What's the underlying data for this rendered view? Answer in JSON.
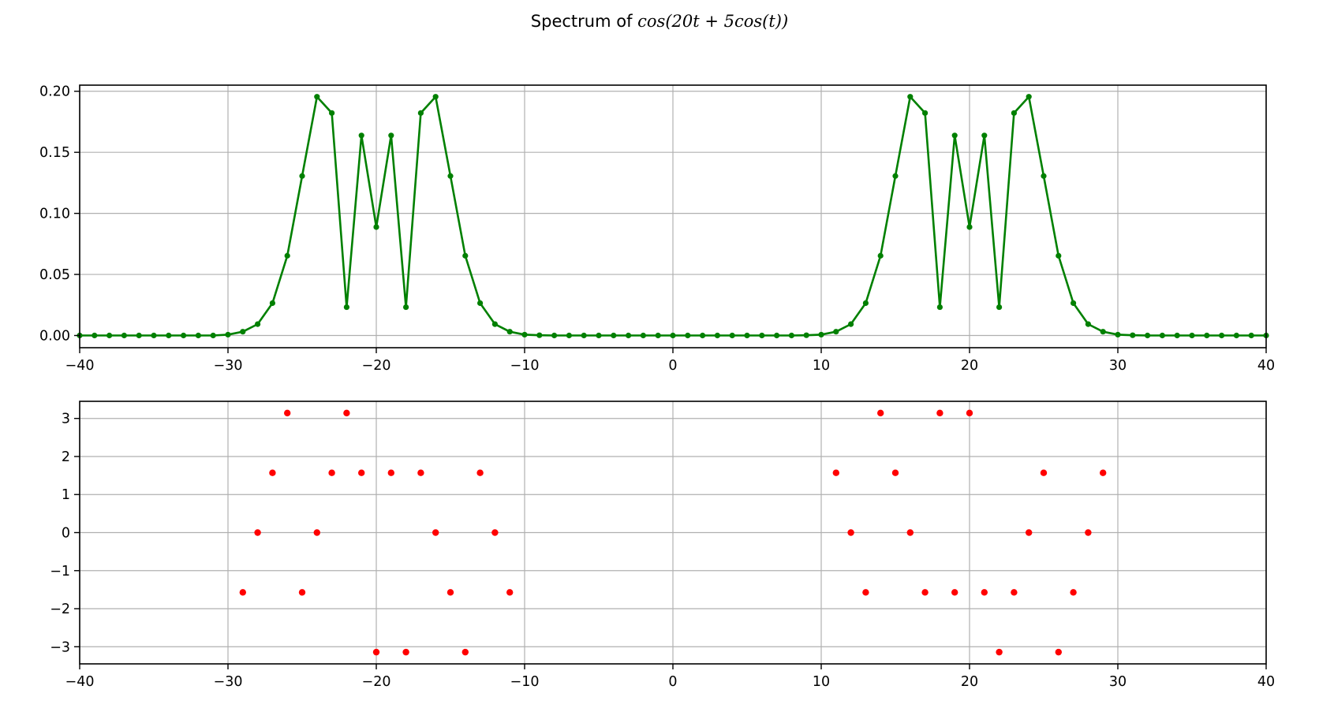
{
  "figure": {
    "title_prefix": "Spectrum of ",
    "title_math": "cos(20t + 5cos(t))"
  },
  "chart_data": [
    {
      "type": "line",
      "title": "",
      "xlabel": "",
      "ylabel": "",
      "xlim": [
        -40,
        40
      ],
      "ylim": [
        -0.01,
        0.205
      ],
      "grid": true,
      "color": "#008000",
      "marker": "circle",
      "x_ticks": [
        -40,
        -30,
        -20,
        -10,
        0,
        10,
        20,
        30,
        40
      ],
      "x_tick_labels": [
        "−40",
        "−30",
        "−20",
        "−10",
        "0",
        "10",
        "20",
        "30",
        "40"
      ],
      "y_ticks": [
        0.0,
        0.05,
        0.1,
        0.15,
        0.2
      ],
      "y_tick_labels": [
        "0.00",
        "0.05",
        "0.10",
        "0.15",
        "0.20"
      ],
      "series": [
        {
          "x": [
            -40,
            -39,
            -38,
            -37,
            -36,
            -35,
            -34,
            -33,
            -32,
            -31,
            -30,
            -29,
            -28,
            -27,
            -26,
            -25,
            -24,
            -23,
            -22,
            -21,
            -20,
            -19,
            -18,
            -17,
            -16,
            -15,
            -14,
            -13,
            -12,
            -11,
            -10,
            -9,
            -8,
            -7,
            -6,
            -5,
            -4,
            -3,
            -2,
            -1,
            0,
            1,
            2,
            3,
            4,
            5,
            6,
            7,
            8,
            9,
            10,
            11,
            12,
            13,
            14,
            15,
            16,
            17,
            18,
            19,
            20,
            21,
            22,
            23,
            24,
            25,
            26,
            27,
            28,
            29,
            30,
            31,
            32,
            33,
            34,
            35,
            36,
            37,
            38,
            39,
            40
          ],
          "y": [
            0,
            0,
            0,
            0,
            0,
            0,
            0,
            0,
            0,
            0,
            0.0007,
            0.0031,
            0.0093,
            0.0265,
            0.0653,
            0.1306,
            0.1955,
            0.1822,
            0.0232,
            0.1638,
            0.0888,
            0.1638,
            0.0232,
            0.1822,
            0.1955,
            0.1306,
            0.0653,
            0.0265,
            0.0093,
            0.0031,
            0.0007,
            0.0002,
            0,
            0,
            0,
            0,
            0,
            0,
            0,
            0,
            0,
            0,
            0,
            0,
            0,
            0,
            0,
            0,
            0,
            0.0002,
            0.0007,
            0.0031,
            0.0093,
            0.0265,
            0.0653,
            0.1306,
            0.1955,
            0.1822,
            0.0232,
            0.1638,
            0.0888,
            0.1638,
            0.0232,
            0.1822,
            0.1955,
            0.1306,
            0.0653,
            0.0265,
            0.0093,
            0.0031,
            0.0007,
            0.0002,
            0,
            0,
            0,
            0,
            0,
            0,
            0,
            0,
            0
          ]
        }
      ]
    },
    {
      "type": "scatter",
      "title": "",
      "xlabel": "",
      "ylabel": "",
      "xlim": [
        -40,
        40
      ],
      "ylim": [
        -3.45,
        3.45
      ],
      "grid": true,
      "color": "#ff0000",
      "marker": "circle",
      "x_ticks": [
        -40,
        -30,
        -20,
        -10,
        0,
        10,
        20,
        30,
        40
      ],
      "x_tick_labels": [
        "−40",
        "−30",
        "−20",
        "−10",
        "0",
        "10",
        "20",
        "30",
        "40"
      ],
      "y_ticks": [
        -3,
        -2,
        -1,
        0,
        1,
        2,
        3
      ],
      "y_tick_labels": [
        "−3",
        "−2",
        "−1",
        "0",
        "1",
        "2",
        "3"
      ],
      "series": [
        {
          "x": [
            -29,
            -28,
            -27,
            -26,
            -25,
            -24,
            -23,
            -22,
            -21,
            -20,
            -19,
            -18,
            -17,
            -16,
            -15,
            -14,
            -13,
            -12,
            -11,
            11,
            12,
            13,
            14,
            15,
            16,
            17,
            18,
            19,
            20,
            21,
            22,
            23,
            24,
            25,
            26,
            27,
            28,
            29
          ],
          "y": [
            -1.5708,
            0,
            1.5708,
            3.1416,
            -1.5708,
            0,
            1.5708,
            3.1416,
            1.5708,
            -3.1416,
            1.5708,
            -3.1416,
            1.5708,
            0,
            -1.5708,
            -3.1416,
            1.5708,
            0,
            -1.5708,
            1.5708,
            0,
            -1.5708,
            3.1416,
            1.5708,
            0,
            -1.5708,
            3.1416,
            -1.5708,
            3.1416,
            -1.5708,
            -3.1416,
            -1.5708,
            0,
            1.5708,
            -3.1416,
            -1.5708,
            0,
            1.5708
          ]
        }
      ]
    }
  ]
}
